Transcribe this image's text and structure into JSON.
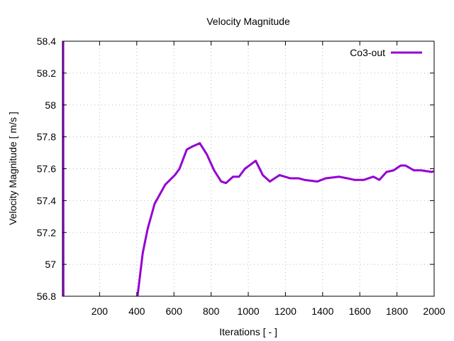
{
  "chart_data": {
    "type": "line",
    "title": "Velocity Magnitude",
    "xlabel": "Iterations [ - ]",
    "ylabel": "Velocity Magnitude [ m/s ]",
    "xlim": [
      0,
      2000
    ],
    "ylim": [
      56.8,
      58.4
    ],
    "xticks": [
      200,
      400,
      600,
      800,
      1000,
      1200,
      1400,
      1600,
      1800,
      2000
    ],
    "yticks": [
      56.8,
      57,
      57.2,
      57.4,
      57.6,
      57.8,
      58,
      58.2,
      58.4
    ],
    "ytick_labels": [
      "56.8",
      "57",
      "57.2",
      "57.4",
      "57.6",
      "57.8",
      "58",
      "58.2",
      "58.4"
    ],
    "grid": true,
    "legend_position": "top-right",
    "series": [
      {
        "name": "Co3-out",
        "color": "#9400d3",
        "segments": [
          [
            [
              4,
              59.5
            ],
            [
              5,
              56.0
            ]
          ],
          [
            [
              404,
              56.8
            ],
            [
              432,
              57.07
            ],
            [
              458,
              57.22
            ],
            [
              496,
              57.38
            ],
            [
              553,
              57.5
            ],
            [
              605,
              57.56
            ],
            [
              630,
              57.6
            ],
            [
              669,
              57.72
            ],
            [
              700,
              57.74
            ],
            [
              739,
              57.76
            ],
            [
              777,
              57.69
            ],
            [
              816,
              57.59
            ],
            [
              854,
              57.52
            ],
            [
              880,
              57.51
            ],
            [
              918,
              57.55
            ],
            [
              950,
              57.55
            ],
            [
              982,
              57.6
            ],
            [
              1040,
              57.65
            ],
            [
              1078,
              57.56
            ],
            [
              1116,
              57.52
            ],
            [
              1168,
              57.56
            ],
            [
              1225,
              57.54
            ],
            [
              1270,
              57.54
            ],
            [
              1302,
              57.53
            ],
            [
              1372,
              57.52
            ],
            [
              1417,
              57.54
            ],
            [
              1488,
              57.55
            ],
            [
              1532,
              57.54
            ],
            [
              1571,
              57.53
            ],
            [
              1622,
              57.53
            ],
            [
              1673,
              57.55
            ],
            [
              1705,
              57.53
            ],
            [
              1744,
              57.58
            ],
            [
              1782,
              57.59
            ],
            [
              1820,
              57.62
            ],
            [
              1846,
              57.62
            ],
            [
              1891,
              57.59
            ],
            [
              1929,
              57.59
            ],
            [
              1987,
              57.58
            ],
            [
              2000,
              57.585
            ]
          ]
        ]
      }
    ]
  }
}
